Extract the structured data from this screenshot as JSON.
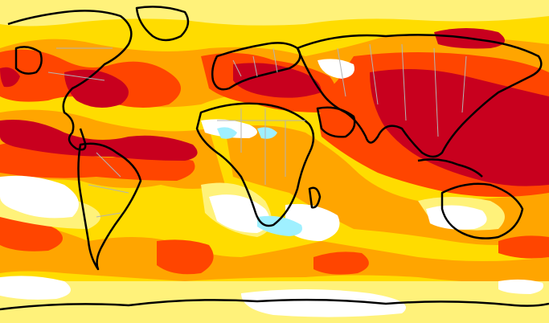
{
  "map": {
    "kind": "global temperature anomaly",
    "projection": "equirectangular",
    "colors": {
      "background_yellow": "#ffdc00",
      "pale_yellow": "#fff27a",
      "white": "#ffffff",
      "orange": "#ffa500",
      "red_orange": "#ff4500",
      "dark_red": "#c8001e",
      "light_blue": "#9ff0ff",
      "coastline": "#000000",
      "borders": "#b4b4b4"
    },
    "legend": "none",
    "labels": []
  }
}
